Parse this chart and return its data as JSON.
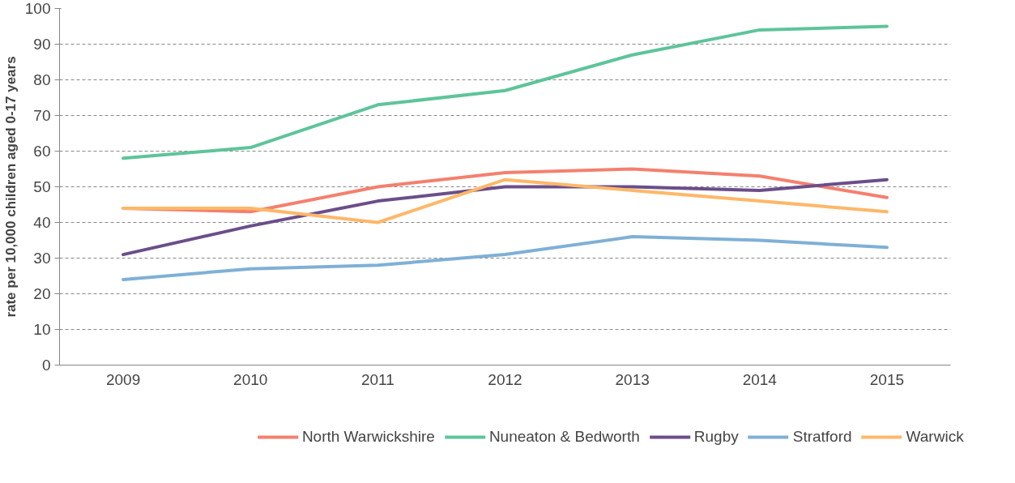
{
  "chart_data": {
    "type": "line",
    "ylabel": "rate per 10,000 children aged 0-17 years",
    "categories": [
      "2009",
      "2010",
      "2011",
      "2012",
      "2013",
      "2014",
      "2015"
    ],
    "series": [
      {
        "name": "North Warwickshire",
        "color": "#f4806e",
        "values": [
          44,
          43,
          50,
          54,
          55,
          53,
          47
        ]
      },
      {
        "name": "Nuneaton & Bedworth",
        "color": "#5ec49a",
        "values": [
          58,
          61,
          73,
          77,
          87,
          94,
          95
        ]
      },
      {
        "name": "Rugby",
        "color": "#6b4e8a",
        "values": [
          31,
          39,
          46,
          50,
          50,
          49,
          52
        ]
      },
      {
        "name": "Stratford",
        "color": "#7fb0d6",
        "values": [
          24,
          27,
          28,
          31,
          36,
          35,
          33
        ]
      },
      {
        "name": "Warwick",
        "color": "#fdb868",
        "values": [
          44,
          44,
          40,
          52,
          49,
          46,
          43
        ]
      }
    ],
    "ylim": [
      0,
      100
    ],
    "yticks": [
      0,
      10,
      20,
      30,
      40,
      50,
      60,
      70,
      80,
      90,
      100
    ],
    "grid": "y",
    "legend": "bottom",
    "marker": "none",
    "line_style": "solid"
  }
}
